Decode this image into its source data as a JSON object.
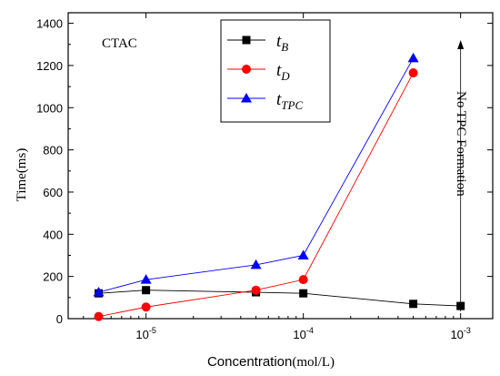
{
  "chart_data": {
    "type": "line",
    "ylabel": "Time(ms)",
    "xlabel_main": "Concentration",
    "xlabel_unit": "(mol/L)",
    "x_scale": "log",
    "xlim": [
      3.2e-06,
      0.0016
    ],
    "ylim": [
      0,
      1450
    ],
    "y_ticks": [
      0,
      200,
      400,
      600,
      800,
      1000,
      1200,
      1400
    ],
    "x_ticks": [
      {
        "value": 1e-05,
        "base": "10",
        "exp": "-5"
      },
      {
        "value": 0.0001,
        "base": "10",
        "exp": "-4"
      },
      {
        "value": 0.001,
        "base": "10",
        "exp": "-3"
      }
    ],
    "x": [
      5e-06,
      1e-05,
      5e-05,
      0.0001,
      0.0005
    ],
    "series": [
      {
        "name": "t",
        "sub": "B",
        "color": "#000000",
        "marker": "square",
        "x": [
          5e-06,
          1e-05,
          5e-05,
          0.0001,
          0.0005,
          0.001
        ],
        "values": [
          120,
          135,
          125,
          120,
          70,
          60
        ]
      },
      {
        "name": "t",
        "sub": "D",
        "color": "#ff0000",
        "marker": "circle",
        "x": [
          5e-06,
          1e-05,
          5e-05,
          0.0001,
          0.0005
        ],
        "values": [
          10,
          55,
          135,
          185,
          1165
        ]
      },
      {
        "name": "t",
        "sub": "TPC",
        "color": "#0000ff",
        "marker": "triangle",
        "x": [
          5e-06,
          1e-05,
          5e-05,
          0.0001,
          0.0005
        ],
        "values": [
          125,
          185,
          255,
          300,
          1235
        ]
      }
    ],
    "annotations": {
      "sample": "CTAC",
      "arrow_label": "No TPC Formation",
      "arrow_x": 0.001
    },
    "legend_position": "top-center",
    "grid": false
  }
}
